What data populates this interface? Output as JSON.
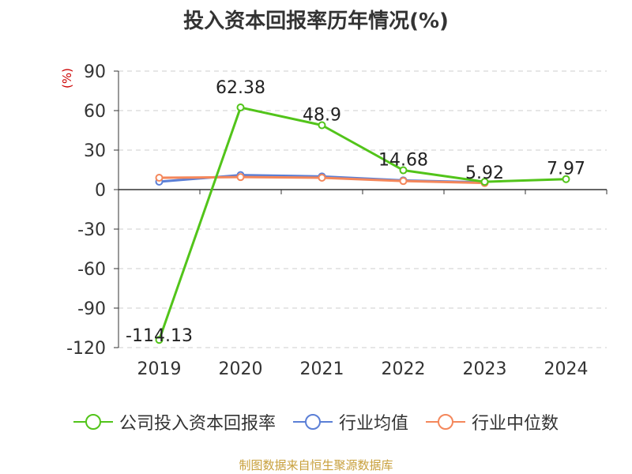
{
  "title": "投入资本回报率历年情况(%)",
  "unit_label": "(%)",
  "source": "制图数据来自恒生聚源数据库",
  "chart_data": {
    "type": "line",
    "categories": [
      "2019",
      "2020",
      "2021",
      "2022",
      "2023",
      "2024"
    ],
    "ylim": [
      -120,
      90
    ],
    "yticks": [
      90,
      60,
      30,
      0,
      -30,
      -60,
      -90,
      -120
    ],
    "ytick_labels": [
      "90",
      "60",
      "30",
      "0",
      "-30",
      "-60",
      "-90",
      "-120"
    ],
    "grid": true,
    "legend_position": "bottom",
    "series": [
      {
        "name": "公司投入资本回报率",
        "color": "#52c41a",
        "values": [
          -114.13,
          62.38,
          48.9,
          14.68,
          5.92,
          7.97
        ],
        "labels": [
          "-114.13",
          "62.38",
          "48.9",
          "14.68",
          "5.92",
          "7.97"
        ]
      },
      {
        "name": "行业均值",
        "color": "#5b7fd6",
        "values": [
          6.0,
          11.0,
          10.0,
          7.0,
          5.5,
          null
        ]
      },
      {
        "name": "行业中位数",
        "color": "#f4875b",
        "values": [
          9.0,
          9.5,
          9.0,
          6.5,
          5.0,
          null
        ]
      }
    ]
  }
}
